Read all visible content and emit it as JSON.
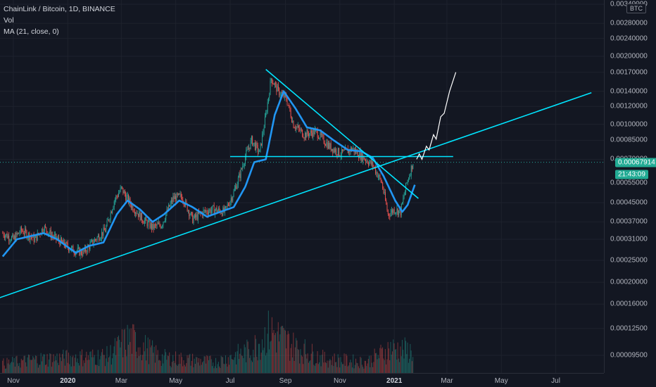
{
  "legend": {
    "symbol": "ChainLink / Bitcoin, 1D, BINANCE",
    "volume": "Vol",
    "ma": "MA (21, close, 0)"
  },
  "price_axis": {
    "unit": "BTC",
    "last_price": "0.00067914",
    "countdown": "21:43:09"
  },
  "colors": {
    "background": "#131722",
    "up": "#26a69a",
    "down": "#ef5350",
    "ma": "#2196f3",
    "trendline": "#00e5ff",
    "projection": "#ffffff"
  },
  "chart_data": {
    "type": "line",
    "title": "ChainLink / Bitcoin, 1D, BINANCE",
    "scale": "log",
    "y_ticks": [
      "0.00340000",
      "0.00280000",
      "0.00240000",
      "0.00200000",
      "0.00170000",
      "0.00140000",
      "0.00120000",
      "0.00100000",
      "0.00085000",
      "0.00070000",
      "0.00055000",
      "0.00045000",
      "0.00037000",
      "0.00031000",
      "0.00025000",
      "0.00020000",
      "0.00016000",
      "0.00012500",
      "0.00009500"
    ],
    "x_ticks": [
      "Nov",
      "2020",
      "Mar",
      "May",
      "Jul",
      "Sep",
      "Nov",
      "2021",
      "Mar",
      "May",
      "Jul"
    ],
    "x_major": [
      "2020",
      "2021"
    ],
    "ylim": [
      8e-05,
      0.0036
    ],
    "price_anchors": [
      {
        "date": "2019-10-20",
        "close": 0.00033
      },
      {
        "date": "2019-11-01",
        "close": 0.00031
      },
      {
        "date": "2019-11-10",
        "close": 0.00034
      },
      {
        "date": "2019-11-25",
        "close": 0.00031
      },
      {
        "date": "2019-12-05",
        "close": 0.00035
      },
      {
        "date": "2019-12-15",
        "close": 0.00032
      },
      {
        "date": "2019-12-25",
        "close": 0.0003
      },
      {
        "date": "2020-01-05",
        "close": 0.00028
      },
      {
        "date": "2020-01-18",
        "close": 0.00027
      },
      {
        "date": "2020-02-01",
        "close": 0.00031
      },
      {
        "date": "2020-02-12",
        "close": 0.00034
      },
      {
        "date": "2020-02-22",
        "close": 0.00046
      },
      {
        "date": "2020-03-01",
        "close": 0.00052
      },
      {
        "date": "2020-03-12",
        "close": 0.00044
      },
      {
        "date": "2020-03-25",
        "close": 0.00038
      },
      {
        "date": "2020-04-05",
        "close": 0.00035
      },
      {
        "date": "2020-04-15",
        "close": 0.00036
      },
      {
        "date": "2020-04-28",
        "close": 0.00047
      },
      {
        "date": "2020-05-08",
        "close": 0.00048
      },
      {
        "date": "2020-05-20",
        "close": 0.00038
      },
      {
        "date": "2020-06-01",
        "close": 0.00041
      },
      {
        "date": "2020-06-12",
        "close": 0.00042
      },
      {
        "date": "2020-06-25",
        "close": 0.00041
      },
      {
        "date": "2020-07-05",
        "close": 0.0005
      },
      {
        "date": "2020-07-12",
        "close": 0.0006
      },
      {
        "date": "2020-07-18",
        "close": 0.00072
      },
      {
        "date": "2020-07-25",
        "close": 0.00085
      },
      {
        "date": "2020-08-03",
        "close": 0.00075
      },
      {
        "date": "2020-08-10",
        "close": 0.0011
      },
      {
        "date": "2020-08-16",
        "close": 0.0016
      },
      {
        "date": "2020-08-24",
        "close": 0.0014
      },
      {
        "date": "2020-09-02",
        "close": 0.0013
      },
      {
        "date": "2020-09-10",
        "close": 0.001
      },
      {
        "date": "2020-09-22",
        "close": 0.0009
      },
      {
        "date": "2020-10-05",
        "close": 0.00093
      },
      {
        "date": "2020-10-20",
        "close": 0.0008
      },
      {
        "date": "2020-11-02",
        "close": 0.00074
      },
      {
        "date": "2020-11-15",
        "close": 0.00078
      },
      {
        "date": "2020-11-28",
        "close": 0.00071
      },
      {
        "date": "2020-12-08",
        "close": 0.00066
      },
      {
        "date": "2020-12-18",
        "close": 0.00055
      },
      {
        "date": "2020-12-25",
        "close": 0.0004
      },
      {
        "date": "2021-01-01",
        "close": 0.00042
      },
      {
        "date": "2021-01-08",
        "close": 0.00041
      },
      {
        "date": "2021-01-15",
        "close": 0.00055
      },
      {
        "date": "2021-01-22",
        "close": 0.00068
      }
    ],
    "ma_anchors": [
      {
        "date": "2019-10-20",
        "value": 0.00026
      },
      {
        "date": "2019-11-05",
        "value": 0.00031
      },
      {
        "date": "2019-11-20",
        "value": 0.00032
      },
      {
        "date": "2019-12-05",
        "value": 0.00033
      },
      {
        "date": "2019-12-20",
        "value": 0.00031
      },
      {
        "date": "2020-01-10",
        "value": 0.00027
      },
      {
        "date": "2020-01-25",
        "value": 0.00029
      },
      {
        "date": "2020-02-10",
        "value": 0.0003
      },
      {
        "date": "2020-02-25",
        "value": 0.0004
      },
      {
        "date": "2020-03-08",
        "value": 0.00046
      },
      {
        "date": "2020-03-22",
        "value": 0.00042
      },
      {
        "date": "2020-04-05",
        "value": 0.00037
      },
      {
        "date": "2020-04-18",
        "value": 0.0004
      },
      {
        "date": "2020-05-05",
        "value": 0.00046
      },
      {
        "date": "2020-05-20",
        "value": 0.00043
      },
      {
        "date": "2020-06-05",
        "value": 0.00039
      },
      {
        "date": "2020-06-20",
        "value": 0.00041
      },
      {
        "date": "2020-07-05",
        "value": 0.00043
      },
      {
        "date": "2020-07-18",
        "value": 0.00053
      },
      {
        "date": "2020-07-28",
        "value": 0.00068
      },
      {
        "date": "2020-08-10",
        "value": 0.0007
      },
      {
        "date": "2020-08-20",
        "value": 0.0011
      },
      {
        "date": "2020-08-30",
        "value": 0.0014
      },
      {
        "date": "2020-09-12",
        "value": 0.00118
      },
      {
        "date": "2020-09-25",
        "value": 0.00097
      },
      {
        "date": "2020-10-10",
        "value": 0.00094
      },
      {
        "date": "2020-10-25",
        "value": 0.00085
      },
      {
        "date": "2020-11-10",
        "value": 0.00077
      },
      {
        "date": "2020-11-25",
        "value": 0.00076
      },
      {
        "date": "2020-12-08",
        "value": 0.00071
      },
      {
        "date": "2020-12-20",
        "value": 0.00059
      },
      {
        "date": "2021-01-02",
        "value": 0.00046
      },
      {
        "date": "2021-01-10",
        "value": 0.00041
      },
      {
        "date": "2021-01-16",
        "value": 0.00044
      },
      {
        "date": "2021-01-24",
        "value": 0.00054
      }
    ],
    "drawings": {
      "ascending_trendline": [
        {
          "date": "2019-10-15",
          "value": 0.00017
        },
        {
          "date": "2021-08-10",
          "value": 0.00138
        }
      ],
      "descending_trendline": [
        {
          "date": "2020-08-10",
          "value": 0.00175
        },
        {
          "date": "2021-01-28",
          "value": 0.00047
        }
      ],
      "horizontal_level": [
        {
          "date": "2020-07-01",
          "value": 0.00072
        },
        {
          "date": "2021-03-08",
          "value": 0.00072
        }
      ],
      "projection_path": [
        {
          "date": "2021-01-26",
          "value": 0.0007
        },
        {
          "date": "2021-01-29",
          "value": 0.00074
        },
        {
          "date": "2021-02-01",
          "value": 0.0007
        },
        {
          "date": "2021-02-06",
          "value": 0.0008
        },
        {
          "date": "2021-02-09",
          "value": 0.00077
        },
        {
          "date": "2021-02-14",
          "value": 0.0009
        },
        {
          "date": "2021-02-17",
          "value": 0.00086
        },
        {
          "date": "2021-02-22",
          "value": 0.00108
        },
        {
          "date": "2021-02-26",
          "value": 0.00112
        },
        {
          "date": "2021-03-04",
          "value": 0.0014
        },
        {
          "date": "2021-03-11",
          "value": 0.0017
        }
      ]
    },
    "volume": {
      "ylim": [
        0,
        1
      ],
      "levels": [
        {
          "date": "2019-10-20",
          "value": 0.12
        },
        {
          "date": "2019-12-01",
          "value": 0.18
        },
        {
          "date": "2020-02-15",
          "value": 0.22
        },
        {
          "date": "2020-03-10",
          "value": 0.45
        },
        {
          "date": "2020-04-15",
          "value": 0.2
        },
        {
          "date": "2020-06-15",
          "value": 0.14
        },
        {
          "date": "2020-07-25",
          "value": 0.3
        },
        {
          "date": "2020-08-15",
          "value": 0.55
        },
        {
          "date": "2020-09-10",
          "value": 0.35
        },
        {
          "date": "2020-10-15",
          "value": 0.18
        },
        {
          "date": "2020-12-01",
          "value": 0.14
        },
        {
          "date": "2020-12-28",
          "value": 0.32
        },
        {
          "date": "2021-01-22",
          "value": 0.28
        }
      ]
    }
  }
}
